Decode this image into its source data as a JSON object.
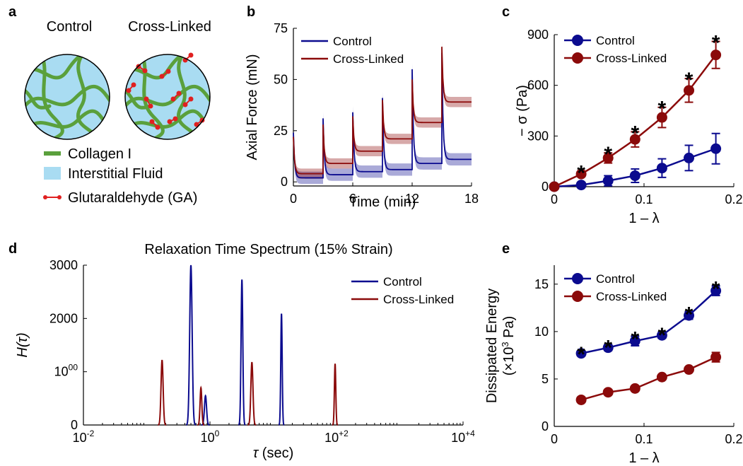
{
  "colors": {
    "control": "#0b0b8f",
    "crosslinked": "#8b0a0a",
    "fluid": "#a9dcf2",
    "collagen": "#5aa03c",
    "ga": "#e02020"
  },
  "panels": {
    "a": {
      "label": "a",
      "title_left": "Control",
      "title_right": "Cross-Linked",
      "legend": [
        "Collagen I",
        "Interstitial Fluid",
        "Glutaraldehyde (GA)"
      ]
    },
    "b": {
      "label": "b"
    },
    "c": {
      "label": "c"
    },
    "d": {
      "label": "d",
      "title": "Relaxation Time Spectrum (15% Strain)"
    },
    "e": {
      "label": "e"
    }
  },
  "chart_data": [
    {
      "panel": "b",
      "type": "line",
      "xlabel": "Time (min)",
      "ylabel": "Axial Force (mN)",
      "xlim": [
        0,
        18
      ],
      "ylim": [
        -2,
        75
      ],
      "xticks": [
        "0",
        "6",
        "12",
        "18"
      ],
      "xtick_values": [
        0,
        6,
        12,
        18
      ],
      "yticks": [
        "0",
        "25",
        "50",
        "75"
      ],
      "ytick_values": [
        0,
        25,
        50,
        75
      ],
      "step_times": [
        0,
        3,
        6,
        9,
        12,
        15
      ],
      "series": [
        {
          "name": "Control",
          "peaks": [
            24,
            31,
            34,
            41,
            55,
            63
          ],
          "equilibrium": [
            2,
            3.5,
            5,
            6,
            9,
            11
          ],
          "band": 3
        },
        {
          "name": "Cross-Linked",
          "peaks": [
            22,
            28,
            32,
            40,
            50,
            66
          ],
          "equilibrium": [
            4,
            9,
            15,
            21,
            29,
            39
          ],
          "band": 2.5
        }
      ]
    },
    {
      "panel": "c",
      "type": "line",
      "xlabel": "1 – λ",
      "ylabel": "− σ (Pa)",
      "xlim": [
        0,
        0.2
      ],
      "ylim": [
        0,
        900
      ],
      "xticks": [
        "0",
        "0.1",
        "0.2"
      ],
      "xtick_values": [
        0,
        0.1,
        0.2
      ],
      "yticks": [
        "0",
        "300",
        "600",
        "900"
      ],
      "ytick_values": [
        0,
        300,
        600,
        900
      ],
      "x": [
        0,
        0.03,
        0.06,
        0.09,
        0.12,
        0.15,
        0.18
      ],
      "series": [
        {
          "name": "Control",
          "values": [
            0,
            10,
            35,
            65,
            110,
            170,
            225
          ],
          "errors": [
            0,
            10,
            30,
            40,
            55,
            75,
            90
          ]
        },
        {
          "name": "Cross-Linked",
          "values": [
            0,
            75,
            170,
            280,
            410,
            570,
            780
          ],
          "errors": [
            0,
            15,
            30,
            45,
            60,
            70,
            80
          ]
        }
      ],
      "significance_x": [
        0.03,
        0.06,
        0.09,
        0.12,
        0.15,
        0.18
      ],
      "significance_marker": "*"
    },
    {
      "panel": "d",
      "type": "line",
      "xlabel": "τ (sec)",
      "ylabel": "H(τ)",
      "xscale": "log",
      "xlim": [
        0.01,
        10000
      ],
      "ylim": [
        0,
        3000
      ],
      "xticks": [
        "10-2",
        "100",
        "10+2",
        "10+4"
      ],
      "xtick_values": [
        0.01,
        1,
        100,
        10000
      ],
      "yticks": [
        "0",
        "1000",
        "2000",
        "3000"
      ],
      "ytick_values": [
        0,
        1000,
        2000,
        3000
      ],
      "series": [
        {
          "name": "Control",
          "peaks": [
            {
              "tau": 0.5,
              "height": 3000,
              "width": 0.035
            },
            {
              "tau": 0.85,
              "height": 550,
              "width": 0.03
            },
            {
              "tau": 3.2,
              "height": 2730,
              "width": 0.025
            },
            {
              "tau": 13.5,
              "height": 2090,
              "width": 0.02
            }
          ]
        },
        {
          "name": "Cross-Linked",
          "peaks": [
            {
              "tau": 0.175,
              "height": 1220,
              "width": 0.03
            },
            {
              "tau": 0.72,
              "height": 700,
              "width": 0.025
            },
            {
              "tau": 4.6,
              "height": 1180,
              "width": 0.03
            },
            {
              "tau": 95,
              "height": 1150,
              "width": 0.02
            }
          ]
        }
      ]
    },
    {
      "panel": "e",
      "type": "line",
      "xlabel": "1 – λ",
      "ylabel": "Dissipated Energy",
      "ylabel2": "(×103 Pa)",
      "xlim": [
        0,
        0.2
      ],
      "ylim": [
        0,
        17
      ],
      "xticks": [
        "0",
        "0.1",
        "0.2"
      ],
      "xtick_values": [
        0,
        0.1,
        0.2
      ],
      "yticks": [
        "0",
        "5",
        "10",
        "15"
      ],
      "ytick_values": [
        0,
        5,
        10,
        15
      ],
      "x": [
        0.03,
        0.06,
        0.09,
        0.12,
        0.15,
        0.18
      ],
      "series": [
        {
          "name": "Control",
          "values": [
            7.7,
            8.3,
            9.0,
            9.6,
            11.7,
            14.3
          ],
          "errors": [
            0.2,
            0.3,
            0.5,
            0.3,
            0.4,
            0.5
          ]
        },
        {
          "name": "Cross-Linked",
          "values": [
            2.8,
            3.6,
            4.0,
            5.2,
            6.0,
            7.3
          ],
          "errors": [
            0.1,
            0.1,
            0.1,
            0.1,
            0.1,
            0.5
          ]
        }
      ],
      "significance_x": [
        0.03,
        0.06,
        0.09,
        0.12,
        0.15,
        0.18
      ],
      "significance_marker": "*"
    }
  ]
}
